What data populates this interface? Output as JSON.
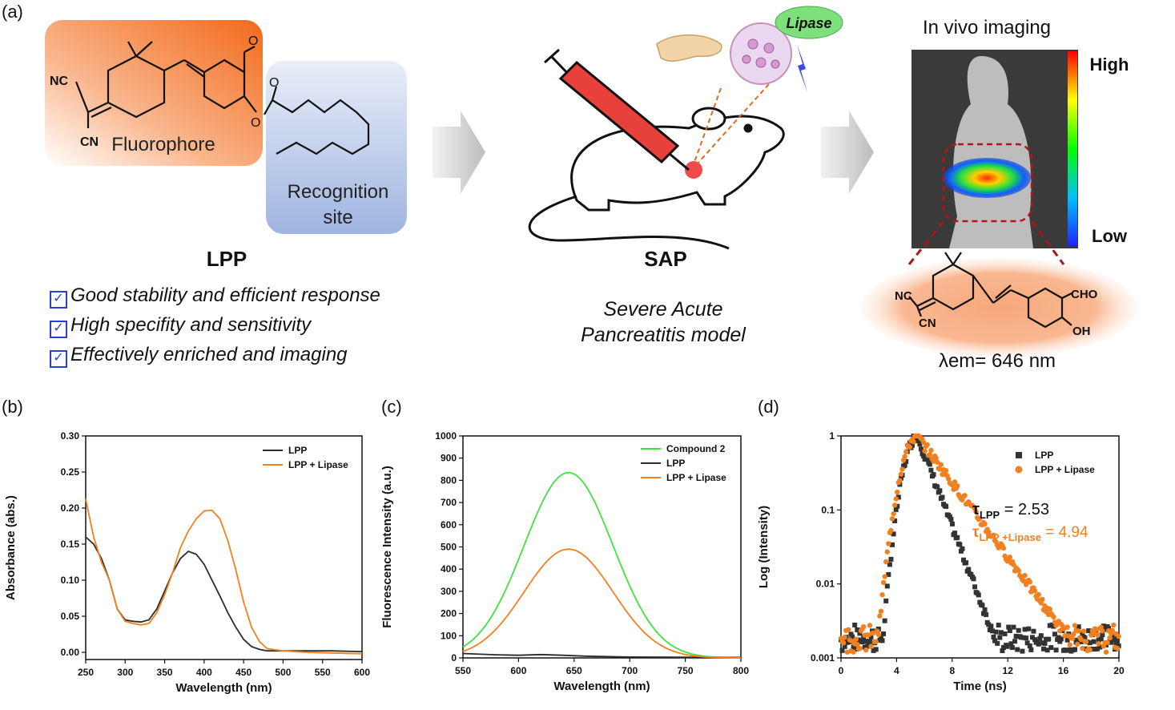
{
  "panels": {
    "a": {
      "label": "(a)",
      "probe": {
        "fluorophore_label": "Fluorophore",
        "recognition_label_line1": "Recognition",
        "recognition_label_line2": "site",
        "name": "LPP",
        "atoms": {
          "nc": "NC",
          "cn": "CN"
        },
        "features": [
          "Good stability and efficient response",
          "High specifity and sensitivity",
          "Effectively enriched and imaging"
        ]
      },
      "model": {
        "enzyme_label": "Lipase",
        "name": "SAP",
        "description_line1": "Severe Acute",
        "description_line2": "Pancreatitis model"
      },
      "imaging": {
        "title": "In vivo imaging",
        "scale_high": "High",
        "scale_low": "Low",
        "product_atoms": {
          "nc": "NC",
          "cn": "CN",
          "cho": "CHO",
          "oh": "OH"
        },
        "emission": "λem= 646 nm"
      },
      "colors": {
        "fluorophore": "#f26a1b",
        "recognition": "#9fb5e0",
        "syringe": "#e8413c",
        "arrow": "#c8c8c8",
        "product_glow": "#f7a77a"
      }
    },
    "b": {
      "label": "(b)"
    },
    "c": {
      "label": "(c)"
    },
    "d": {
      "label": "(d)",
      "tau_lpp": "2.53",
      "tau_lpp_lipase": "4.94"
    }
  },
  "chart_data": [
    {
      "id": "b",
      "type": "line",
      "xlabel": "Wavelength (nm)",
      "ylabel": "Absorbance (abs.)",
      "xlim": [
        250,
        600
      ],
      "ylim": [
        -0.01,
        0.3
      ],
      "xticks": [
        "250",
        "300",
        "350",
        "400",
        "450",
        "500",
        "550",
        "600"
      ],
      "yticks": [
        "0.00",
        "0.05",
        "0.10",
        "0.15",
        "0.20",
        "0.25",
        "0.30"
      ],
      "legend": "top-right",
      "series": [
        {
          "name": "LPP",
          "color": "#2b2b2b",
          "x": [
            250,
            260,
            270,
            280,
            290,
            300,
            310,
            320,
            330,
            340,
            350,
            360,
            370,
            380,
            390,
            400,
            410,
            420,
            430,
            440,
            450,
            460,
            470,
            480,
            500,
            530,
            560,
            600
          ],
          "y": [
            0.16,
            0.15,
            0.13,
            0.1,
            0.06,
            0.045,
            0.043,
            0.042,
            0.045,
            0.06,
            0.085,
            0.11,
            0.13,
            0.14,
            0.136,
            0.122,
            0.1,
            0.078,
            0.055,
            0.035,
            0.018,
            0.008,
            0.004,
            0.002,
            0.002,
            0.002,
            0.002,
            0.001
          ]
        },
        {
          "name": "LPP + Lipase",
          "color": "#f08020",
          "x": [
            250,
            260,
            270,
            280,
            290,
            300,
            310,
            320,
            330,
            340,
            350,
            360,
            370,
            380,
            390,
            400,
            410,
            420,
            430,
            440,
            450,
            460,
            470,
            480,
            500,
            530,
            560,
            600
          ],
          "y": [
            0.213,
            0.16,
            0.125,
            0.1,
            0.06,
            0.043,
            0.04,
            0.038,
            0.04,
            0.055,
            0.08,
            0.11,
            0.145,
            0.168,
            0.185,
            0.196,
            0.197,
            0.185,
            0.155,
            0.115,
            0.07,
            0.035,
            0.015,
            0.005,
            0.002,
            0.0,
            -0.001,
            -0.002
          ]
        }
      ]
    },
    {
      "id": "c",
      "type": "line",
      "xlabel": "Wavelength (nm)",
      "ylabel": "Fluorescence Intensity (a.u.)",
      "xlim": [
        550,
        800
      ],
      "ylim": [
        0,
        1000
      ],
      "xticks": [
        "550",
        "600",
        "650",
        "700",
        "750",
        "800"
      ],
      "yticks": [
        "0",
        "100",
        "200",
        "300",
        "400",
        "500",
        "600",
        "700",
        "800",
        "900",
        "1000"
      ],
      "legend": "top-right",
      "series": [
        {
          "name": "Compound 2",
          "color": "#3fe33f",
          "peak_x": 645,
          "peak_y": 835,
          "sigma": 40,
          "base": 0
        },
        {
          "name": "LPP",
          "color": "#2b2b2b",
          "x": [
            550,
            580,
            600,
            620,
            640,
            660,
            700,
            750,
            800
          ],
          "y": [
            20,
            14,
            12,
            15,
            12,
            8,
            4,
            3,
            2
          ]
        },
        {
          "name": "LPP + Lipase",
          "color": "#f08020",
          "peak_x": 645,
          "peak_y": 490,
          "sigma": 40,
          "base": 0
        }
      ]
    },
    {
      "id": "d",
      "type": "scatter",
      "xlabel": "Time (ns)",
      "ylabel": "Log (Intensity)",
      "xlim": [
        0,
        20
      ],
      "ylim": [
        0.001,
        1
      ],
      "yscale": "log",
      "xticks": [
        "0",
        "4",
        "8",
        "12",
        "16",
        "20"
      ],
      "yticks": [
        "0.001",
        "0.01",
        "0.1",
        "1"
      ],
      "legend": "top-right",
      "series": [
        {
          "name": "LPP",
          "color": "#333333",
          "marker": "square",
          "peak_t": 5.5,
          "rise": 0.7,
          "tau": 2.53
        },
        {
          "name": "LPP + Lipase",
          "color": "#f08020",
          "marker": "circle",
          "peak_t": 5.5,
          "rise": 0.8,
          "tau": 4.94
        }
      ]
    }
  ]
}
